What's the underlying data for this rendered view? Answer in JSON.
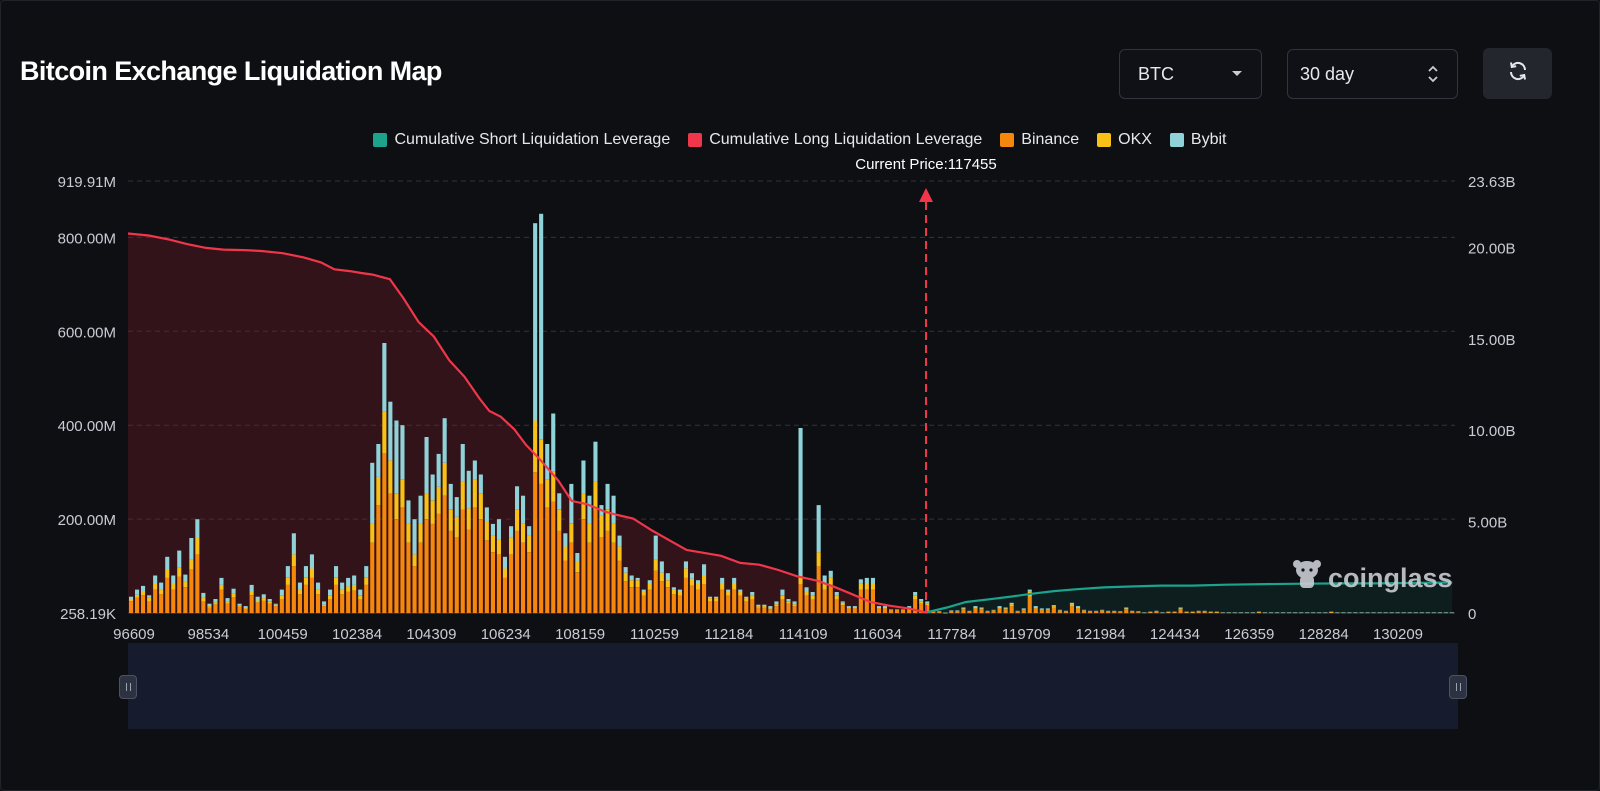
{
  "header": {
    "title": "Bitcoin Exchange Liquidation Map",
    "asset_select": "BTC",
    "range_select": "30 day"
  },
  "icons": {
    "asset_dropdown": "caret-down-icon",
    "range_dropdown": "up-down-chevron-icon",
    "refresh": "refresh-icon",
    "watermark_logo": "coinglass-mascot-icon"
  },
  "watermark": "coinglass",
  "colors": {
    "background": "#0d0f13",
    "short_line": "#1ba38e",
    "long_line": "#f0364a",
    "binance": "#f5870d",
    "okx": "#f7c117",
    "bybit": "#8fd3d9",
    "current_price": "#f0364a"
  },
  "chart_data": {
    "type": "bar",
    "current_price_label": "Current Price:117455",
    "current_price": 117455,
    "legend": [
      {
        "label": "Cumulative Short Liquidation Leverage",
        "color": "#1ba38e"
      },
      {
        "label": "Cumulative Long Liquidation Leverage",
        "color": "#f0364a"
      },
      {
        "label": "Binance",
        "color": "#f5870d"
      },
      {
        "label": "OKX",
        "color": "#f7c117"
      },
      {
        "label": "Bybit",
        "color": "#8fd3d9"
      }
    ],
    "legend_placement": "top-center",
    "grid": "horizontal-dashed",
    "x_range": [
      96609,
      131274
    ],
    "x_tick_labels": [
      "96609",
      "98534",
      "100459",
      "102384",
      "104309",
      "106234",
      "108159",
      "110259",
      "112184",
      "114109",
      "116034",
      "117784",
      "119709",
      "121984",
      "124434",
      "126359",
      "128284",
      "130209"
    ],
    "y_left": {
      "tick_labels": [
        "258.19K",
        "200.00M",
        "400.00M",
        "600.00M",
        "800.00M",
        "919.91M"
      ],
      "tick_values_m": [
        0.258,
        200,
        400,
        600,
        800,
        919.91
      ],
      "range_m": [
        0.258,
        919.91
      ],
      "unit": "M"
    },
    "y_right": {
      "tick_labels": [
        "0",
        "5.00B",
        "10.00B",
        "15.00B",
        "20.00B",
        "23.63B"
      ],
      "tick_values_b": [
        0,
        5,
        10,
        15,
        20,
        23.63
      ],
      "range_b": [
        0,
        23.63
      ],
      "unit": "B"
    },
    "bar_series": [
      {
        "name": "Binance",
        "values_m": [
          25,
          33,
          38,
          25,
          50,
          40,
          75,
          50,
          78,
          55,
          93,
          125,
          25,
          12,
          18,
          50,
          20,
          34,
          14,
          9,
          38,
          22,
          26,
          20,
          15,
          30,
          60,
          100,
          40,
          60,
          75,
          40,
          15,
          30,
          60,
          40,
          45,
          48,
          30,
          60,
          150,
          230,
          340,
          255,
          200,
          225,
          150,
          100,
          150,
          200,
          190,
          212,
          250,
          175,
          162,
          220,
          178,
          225,
          200,
          155,
          130,
          125,
          75,
          125,
          175,
          150,
          130,
          300,
          275,
          225,
          237,
          175,
          112,
          150,
          87,
          200,
          150,
          220,
          162,
          175,
          150,
          112,
          68,
          55,
          55,
          37,
          50,
          90,
          68,
          55,
          40,
          37,
          75,
          58,
          50,
          62,
          25,
          25,
          50,
          37,
          50,
          37,
          25,
          30,
          12,
          12,
          8,
          15,
          30,
          20,
          15,
          62,
          37,
          30,
          100,
          50,
          60,
          30,
          17,
          10,
          10,
          50,
          50,
          50,
          10,
          10,
          5,
          5,
          5,
          10,
          30,
          20,
          16,
          3,
          2,
          0.5,
          4,
          4,
          8,
          3,
          10,
          8,
          3,
          5,
          10,
          8,
          15,
          3,
          6,
          35,
          10,
          6,
          6,
          12,
          5,
          3,
          15,
          10,
          5,
          3,
          3,
          5,
          3,
          3,
          2,
          8,
          3,
          2,
          1,
          2,
          3,
          1,
          2,
          2,
          8,
          2,
          2,
          3,
          3,
          2,
          2,
          1,
          1,
          1,
          1,
          1,
          1,
          2,
          1,
          1,
          1,
          1,
          1,
          1,
          1,
          1,
          1,
          1,
          1,
          2,
          1,
          1,
          1,
          1,
          1,
          1,
          1,
          1,
          1,
          1,
          1,
          1,
          1,
          1,
          1,
          1,
          1,
          1,
          1,
          1
        ]
      },
      {
        "name": "OKX",
        "values_m": [
          5,
          6,
          8,
          8,
          12,
          10,
          18,
          12,
          20,
          12,
          22,
          35,
          8,
          3,
          5,
          10,
          5,
          7,
          3,
          2,
          9,
          5,
          6,
          5,
          3,
          7,
          15,
          25,
          10,
          15,
          20,
          10,
          3,
          7,
          15,
          10,
          12,
          12,
          8,
          15,
          40,
          60,
          90,
          70,
          55,
          60,
          40,
          25,
          40,
          55,
          50,
          57,
          70,
          45,
          43,
          60,
          45,
          60,
          55,
          40,
          35,
          32,
          20,
          35,
          45,
          40,
          35,
          110,
          95,
          60,
          65,
          45,
          30,
          40,
          23,
          55,
          40,
          60,
          45,
          45,
          40,
          30,
          18,
          15,
          15,
          10,
          13,
          25,
          18,
          15,
          10,
          10,
          20,
          15,
          13,
          17,
          7,
          7,
          13,
          10,
          13,
          10,
          7,
          8,
          3,
          3,
          2,
          4,
          8,
          5,
          4,
          17,
          10,
          8,
          30,
          13,
          16,
          8,
          5,
          3,
          3,
          14,
          13,
          13,
          3,
          3,
          2,
          2,
          2,
          3,
          8,
          5,
          5,
          1,
          1,
          0.2,
          1,
          1,
          2,
          1,
          3,
          2,
          1,
          1,
          3,
          2,
          4,
          1,
          2,
          10,
          3,
          2,
          2,
          3,
          1,
          1,
          4,
          3,
          1,
          1,
          1,
          1,
          1,
          1,
          1,
          2,
          1,
          1,
          0.3,
          0.5,
          1,
          0.3,
          0.5,
          0.5,
          2,
          0.5,
          0.5,
          1,
          1,
          0.5,
          0.5,
          0.3,
          0.3,
          0.3,
          0.3,
          0.3,
          0.3,
          0.5,
          0.3,
          0.3,
          0.3,
          0.3,
          0.3,
          0.3,
          0.3,
          0.3,
          0.3,
          0.3,
          0.3,
          0.5,
          0.3,
          0.3,
          0.3,
          0.3,
          0.3,
          0.3,
          0.3,
          0.3,
          0.3,
          0.3,
          0.3,
          0.3,
          0.3,
          0.3,
          0.3,
          0.3,
          0.3,
          0.3,
          0.3,
          0.3
        ]
      },
      {
        "name": "Bybit",
        "values_m": [
          5,
          11,
          12,
          5,
          18,
          15,
          27,
          18,
          35,
          15,
          45,
          40,
          10,
          5,
          7,
          15,
          7,
          11,
          3,
          4,
          13,
          8,
          8,
          5,
          2,
          13,
          25,
          45,
          15,
          25,
          30,
          15,
          7,
          13,
          25,
          15,
          18,
          20,
          12,
          25,
          130,
          70,
          145,
          125,
          155,
          115,
          50,
          75,
          60,
          120,
          55,
          70,
          95,
          55,
          42,
          80,
          80,
          40,
          40,
          30,
          25,
          43,
          25,
          25,
          50,
          60,
          20,
          420,
          480,
          75,
          123,
          35,
          28,
          85,
          18,
          70,
          60,
          85,
          23,
          55,
          60,
          23,
          12,
          10,
          5,
          3,
          7,
          50,
          24,
          15,
          5,
          3,
          15,
          12,
          7,
          25,
          3,
          3,
          12,
          3,
          12,
          3,
          3,
          7,
          3,
          3,
          5,
          6,
          12,
          5,
          6,
          315,
          8,
          7,
          100,
          17,
          14,
          7,
          3,
          2,
          2,
          8,
          12,
          12,
          2,
          2,
          1,
          1,
          1,
          2,
          7,
          5,
          4,
          1,
          1,
          0.3,
          1,
          1,
          2,
          1,
          2,
          2,
          1,
          1,
          2,
          2,
          3,
          1,
          2,
          5,
          2,
          2,
          2,
          2,
          1,
          1,
          3,
          2,
          1,
          1,
          1,
          1,
          1,
          1,
          1,
          2,
          1,
          1,
          0.3,
          0.5,
          1,
          0.3,
          0.5,
          0.5,
          2,
          0.5,
          0.5,
          1,
          1,
          0.5,
          0.5,
          0.3,
          0.3,
          0.3,
          0.3,
          0.3,
          0.3,
          0.5,
          0.3,
          0.3,
          0.3,
          0.3,
          0.3,
          0.3,
          0.3,
          0.3,
          0.3,
          0.3,
          0.3,
          0.5,
          0.3,
          0.3,
          0.3,
          0.3,
          0.3,
          0.3,
          0.3,
          0.3,
          0.3,
          0.3,
          0.3,
          0.3,
          0.3,
          0.3,
          0.3,
          0.3,
          0.3,
          0.3,
          0.3,
          0.3
        ]
      }
    ],
    "long_curve": {
      "name": "Cumulative Long Liquidation Leverage",
      "x": [
        96609,
        97150,
        97700,
        98150,
        98650,
        99100,
        99650,
        100100,
        100650,
        101200,
        101650,
        102000,
        102400,
        102700,
        103000,
        103450,
        103800,
        104200,
        104600,
        105000,
        105400,
        105800,
        106050,
        106350,
        106700,
        107000,
        107400,
        107850,
        108200,
        108600,
        109050,
        109400,
        109800,
        110300,
        110800,
        111200,
        111700,
        112100,
        112600,
        113100,
        113600,
        114100,
        114600,
        115050,
        115500,
        116000,
        116500,
        117000,
        117455
      ],
      "y_b": [
        20.76,
        20.65,
        20.42,
        20.18,
        19.97,
        19.88,
        19.85,
        19.8,
        19.68,
        19.45,
        19.18,
        18.8,
        18.7,
        18.6,
        18.51,
        18.26,
        17.23,
        15.91,
        15.12,
        13.83,
        12.92,
        11.71,
        11.05,
        10.73,
        10.05,
        9.21,
        8.33,
        7.25,
        6.13,
        5.95,
        5.56,
        5.36,
        5.17,
        4.51,
        3.92,
        3.45,
        3.27,
        3.13,
        2.74,
        2.64,
        2.35,
        2.0,
        1.77,
        1.44,
        1.05,
        0.6,
        0.4,
        0.25,
        0.03
      ]
    },
    "short_curve": {
      "name": "Cumulative Short Liquidation Leverage",
      "x": [
        117455,
        118000,
        118500,
        119100,
        119700,
        120200,
        120800,
        121400,
        122100,
        122800,
        123600,
        124400,
        125300,
        126300,
        127300,
        128300,
        129300,
        130300,
        131200
      ],
      "y_b": [
        0.03,
        0.3,
        0.6,
        0.75,
        0.9,
        1.05,
        1.2,
        1.3,
        1.4,
        1.45,
        1.5,
        1.5,
        1.55,
        1.58,
        1.6,
        1.62,
        1.62,
        1.65,
        1.67
      ]
    }
  }
}
